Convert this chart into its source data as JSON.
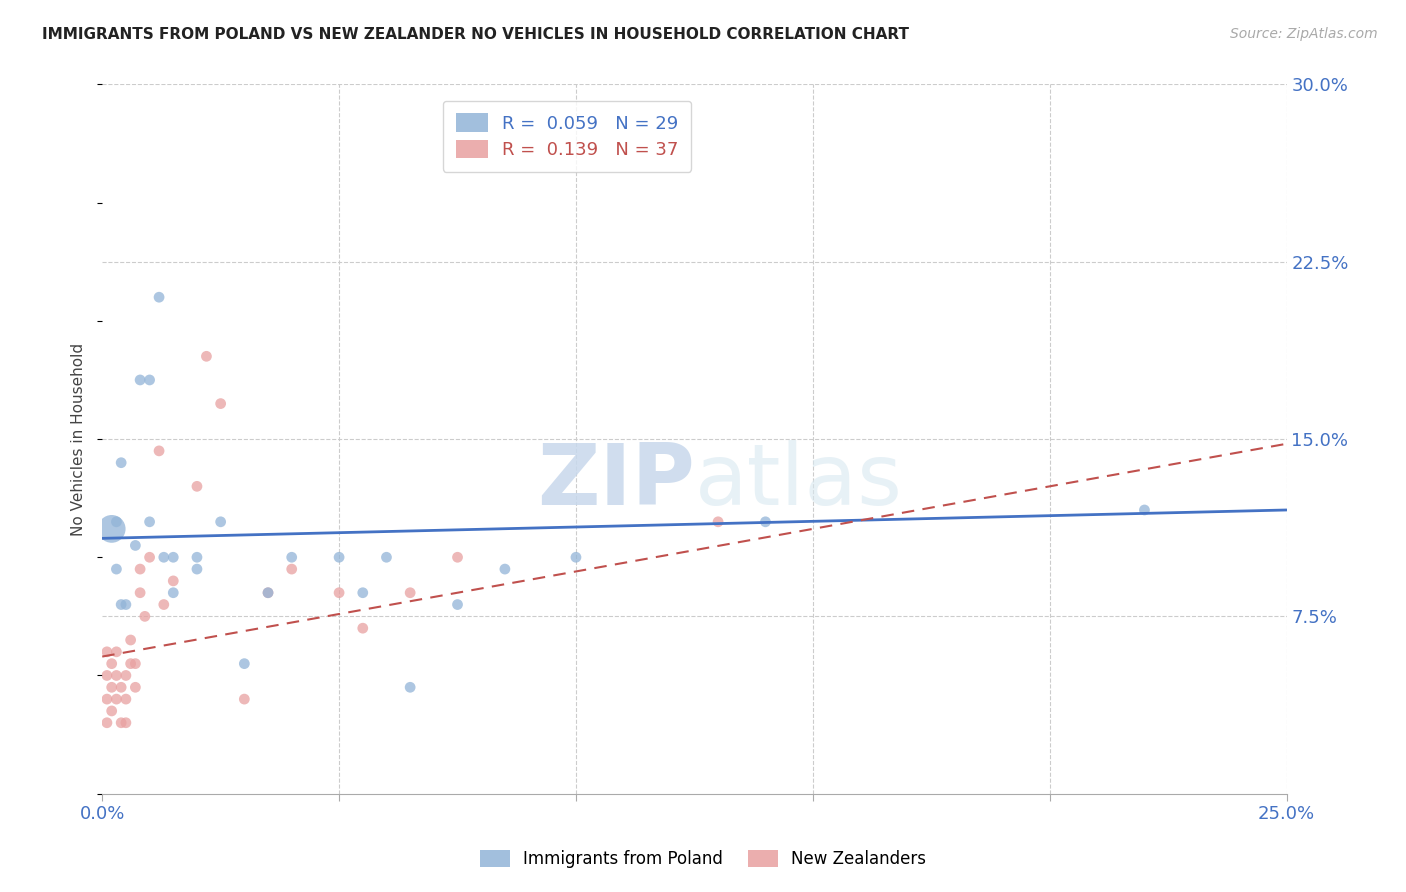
{
  "title": "IMMIGRANTS FROM POLAND VS NEW ZEALANDER NO VEHICLES IN HOUSEHOLD CORRELATION CHART",
  "source": "Source: ZipAtlas.com",
  "ylabel": "No Vehicles in Household",
  "xlim": [
    0.0,
    0.25
  ],
  "ylim": [
    0.0,
    0.3
  ],
  "yticks": [
    0.075,
    0.15,
    0.225,
    0.3
  ],
  "ytick_labels": [
    "7.5%",
    "15.0%",
    "22.5%",
    "30.0%"
  ],
  "xticks": [
    0.0,
    0.05,
    0.1,
    0.15,
    0.2,
    0.25
  ],
  "xtick_labels": [
    "0.0%",
    "",
    "",
    "",
    "",
    "25.0%"
  ],
  "blue_color": "#92b4d7",
  "pink_color": "#e8a0a0",
  "blue_line_color": "#4472c4",
  "pink_line_color": "#c0504d",
  "axis_label_color": "#4472c4",
  "watermark_zip": "ZIP",
  "watermark_atlas": "atlas",
  "blue_scatter_x": [
    0.002,
    0.003,
    0.003,
    0.004,
    0.004,
    0.005,
    0.007,
    0.008,
    0.01,
    0.01,
    0.012,
    0.013,
    0.015,
    0.015,
    0.02,
    0.02,
    0.025,
    0.03,
    0.035,
    0.04,
    0.05,
    0.055,
    0.06,
    0.065,
    0.075,
    0.085,
    0.1,
    0.14,
    0.22
  ],
  "blue_scatter_y": [
    0.112,
    0.095,
    0.115,
    0.14,
    0.08,
    0.08,
    0.105,
    0.175,
    0.115,
    0.175,
    0.21,
    0.1,
    0.1,
    0.085,
    0.1,
    0.095,
    0.115,
    0.055,
    0.085,
    0.1,
    0.1,
    0.085,
    0.1,
    0.045,
    0.08,
    0.095,
    0.1,
    0.115,
    0.12
  ],
  "blue_scatter_size": [
    400,
    60,
    60,
    60,
    60,
    60,
    60,
    60,
    60,
    60,
    60,
    60,
    60,
    60,
    60,
    60,
    60,
    60,
    60,
    60,
    60,
    60,
    60,
    60,
    60,
    60,
    60,
    60,
    60
  ],
  "pink_scatter_x": [
    0.001,
    0.001,
    0.001,
    0.001,
    0.002,
    0.002,
    0.002,
    0.003,
    0.003,
    0.003,
    0.004,
    0.004,
    0.005,
    0.005,
    0.005,
    0.006,
    0.006,
    0.007,
    0.007,
    0.008,
    0.008,
    0.009,
    0.01,
    0.012,
    0.013,
    0.015,
    0.02,
    0.022,
    0.025,
    0.03,
    0.035,
    0.04,
    0.05,
    0.055,
    0.065,
    0.075,
    0.13
  ],
  "pink_scatter_y": [
    0.03,
    0.04,
    0.05,
    0.06,
    0.035,
    0.045,
    0.055,
    0.04,
    0.05,
    0.06,
    0.03,
    0.045,
    0.03,
    0.04,
    0.05,
    0.055,
    0.065,
    0.045,
    0.055,
    0.085,
    0.095,
    0.075,
    0.1,
    0.145,
    0.08,
    0.09,
    0.13,
    0.185,
    0.165,
    0.04,
    0.085,
    0.095,
    0.085,
    0.07,
    0.085,
    0.1,
    0.115
  ],
  "pink_scatter_size": [
    60,
    60,
    60,
    60,
    60,
    60,
    60,
    60,
    60,
    60,
    60,
    60,
    60,
    60,
    60,
    60,
    60,
    60,
    60,
    60,
    60,
    60,
    60,
    60,
    60,
    60,
    60,
    60,
    60,
    60,
    60,
    60,
    60,
    60,
    60,
    60,
    60
  ],
  "blue_trend_x": [
    0.0,
    0.25
  ],
  "blue_trend_y": [
    0.108,
    0.12
  ],
  "pink_trend_x": [
    0.0,
    0.25
  ],
  "pink_trend_y": [
    0.058,
    0.148
  ],
  "legend_labels": [
    "Immigrants from Poland",
    "New Zealanders"
  ],
  "legend_r1_color": "#4472c4",
  "legend_r2_color": "#c0504d",
  "figsize": [
    14.06,
    8.92
  ]
}
